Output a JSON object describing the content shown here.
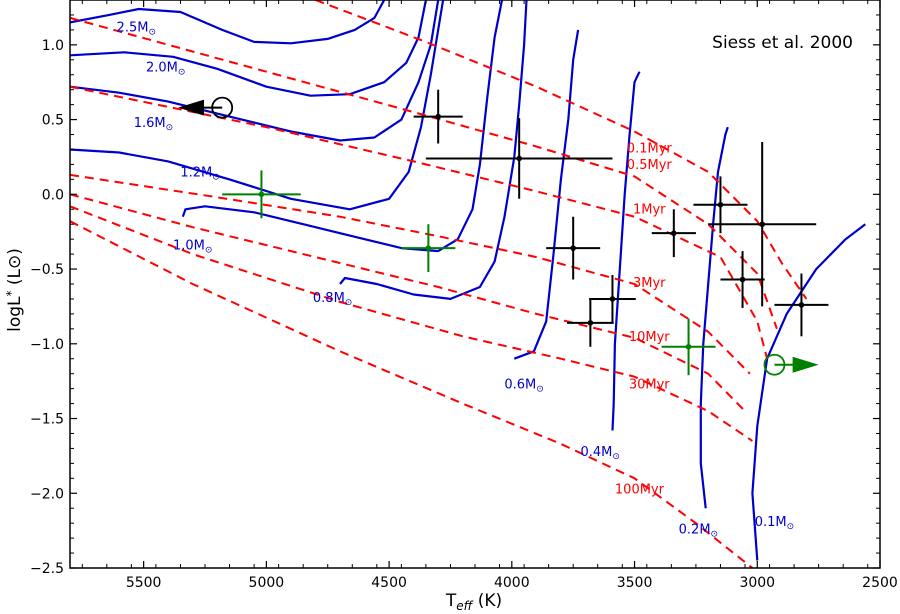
{
  "chart_data": {
    "type": "scatter",
    "title": "Siess et al. 2000",
    "xlabel": {
      "main": "T",
      "sub": "eff",
      "unit": " (K)"
    },
    "ylabel": {
      "main": "logL",
      "sub": "*",
      "unit": " (L⊙)"
    },
    "xlim": [
      5800,
      2500
    ],
    "ylim": [
      -2.5,
      1.3
    ],
    "x_ticks": [
      5500,
      5000,
      4500,
      4000,
      3500,
      3000,
      2500
    ],
    "y_ticks": [
      1.0,
      0.5,
      0.0,
      -0.5,
      -1.0,
      -1.5,
      -2.0,
      -2.5
    ],
    "tick_labels_x": [
      "5500",
      "5000",
      "4500",
      "4000",
      "3500",
      "3000",
      "2500"
    ],
    "tick_labels_y": [
      "1.0",
      "0.5",
      "0.0",
      "−0.5",
      "−1.0",
      "−1.5",
      "−2.0",
      "−2.5"
    ],
    "colors": {
      "track": "#0000cc",
      "isochrone": "#ff0000",
      "point": "#000000",
      "special": "#008000"
    },
    "tracks": [
      {
        "label": "2.5M⊙",
        "label_pos": [
          5530,
          1.09
        ],
        "points": [
          [
            5800,
            1.15
          ],
          [
            5640,
            1.2
          ],
          [
            5520,
            1.24
          ],
          [
            5350,
            1.22
          ],
          [
            5180,
            1.1
          ],
          [
            5050,
            1.02
          ],
          [
            4900,
            1.01
          ],
          [
            4750,
            1.04
          ],
          [
            4640,
            1.1
          ],
          [
            4560,
            1.18
          ],
          [
            4520,
            1.3
          ]
        ]
      },
      {
        "label": "2.0M⊙",
        "label_pos": [
          5410,
          0.82
        ],
        "points": [
          [
            5800,
            0.93
          ],
          [
            5580,
            0.95
          ],
          [
            5380,
            0.92
          ],
          [
            5200,
            0.84
          ],
          [
            5000,
            0.72
          ],
          [
            4820,
            0.66
          ],
          [
            4660,
            0.67
          ],
          [
            4520,
            0.75
          ],
          [
            4430,
            0.88
          ],
          [
            4380,
            1.05
          ],
          [
            4350,
            1.3
          ]
        ]
      },
      {
        "label": "1.6M⊙",
        "label_pos": [
          5460,
          0.45
        ],
        "points": [
          [
            5800,
            0.72
          ],
          [
            5600,
            0.68
          ],
          [
            5400,
            0.62
          ],
          [
            5150,
            0.52
          ],
          [
            4900,
            0.42
          ],
          [
            4700,
            0.36
          ],
          [
            4560,
            0.38
          ],
          [
            4450,
            0.5
          ],
          [
            4380,
            0.75
          ],
          [
            4330,
            1.0
          ],
          [
            4300,
            1.3
          ]
        ]
      },
      {
        "label": "1.2M⊙",
        "label_pos": [
          5270,
          0.12
        ],
        "points": [
          [
            5800,
            0.3
          ],
          [
            5600,
            0.28
          ],
          [
            5400,
            0.22
          ],
          [
            5150,
            0.1
          ],
          [
            4900,
            -0.03
          ],
          [
            4660,
            -0.1
          ],
          [
            4500,
            -0.03
          ],
          [
            4420,
            0.15
          ],
          [
            4370,
            0.45
          ],
          [
            4330,
            0.8
          ],
          [
            4280,
            1.3
          ]
        ]
      },
      {
        "label": "1.0M⊙",
        "label_pos": [
          5300,
          -0.37
        ],
        "points": [
          [
            5340,
            -0.15
          ],
          [
            5330,
            -0.1
          ],
          [
            5250,
            -0.08
          ],
          [
            5050,
            -0.12
          ],
          [
            4850,
            -0.2
          ],
          [
            4650,
            -0.28
          ],
          [
            4450,
            -0.36
          ],
          [
            4300,
            -0.38
          ],
          [
            4220,
            -0.3
          ],
          [
            4160,
            -0.1
          ],
          [
            4130,
            0.2
          ],
          [
            4100,
            0.65
          ],
          [
            4070,
            1.05
          ],
          [
            4040,
            1.3
          ]
        ]
      },
      {
        "label": "0.8M⊙",
        "label_pos": [
          4730,
          -0.72
        ],
        "points": [
          [
            4700,
            -0.6
          ],
          [
            4680,
            -0.56
          ],
          [
            4550,
            -0.6
          ],
          [
            4400,
            -0.67
          ],
          [
            4250,
            -0.7
          ],
          [
            4130,
            -0.62
          ],
          [
            4070,
            -0.45
          ],
          [
            4030,
            -0.15
          ],
          [
            3990,
            0.25
          ],
          [
            3970,
            0.6
          ],
          [
            3950,
            1.0
          ],
          [
            3940,
            1.3
          ]
        ]
      },
      {
        "label": "0.6M⊙",
        "label_pos": [
          3950,
          -1.3
        ],
        "points": [
          [
            3990,
            -1.1
          ],
          [
            3910,
            -1.05
          ],
          [
            3860,
            -0.85
          ],
          [
            3830,
            -0.4
          ],
          [
            3800,
            0.1
          ],
          [
            3770,
            0.5
          ],
          [
            3750,
            0.9
          ],
          [
            3730,
            1.1
          ]
        ]
      },
      {
        "label": "0.4M⊙",
        "label_pos": [
          3640,
          -1.75
        ],
        "points": [
          [
            3590,
            -1.58
          ],
          [
            3585,
            -1.4
          ],
          [
            3580,
            -1.0
          ],
          [
            3560,
            -0.5
          ],
          [
            3540,
            0.0
          ],
          [
            3520,
            0.4
          ],
          [
            3500,
            0.75
          ],
          [
            3480,
            0.82
          ]
        ]
      },
      {
        "label": "0.2M⊙",
        "label_pos": [
          3240,
          -2.27
        ],
        "points": [
          [
            3210,
            -2.1
          ],
          [
            3230,
            -1.8
          ],
          [
            3230,
            -1.4
          ],
          [
            3220,
            -1.0
          ],
          [
            3200,
            -0.6
          ],
          [
            3180,
            -0.2
          ],
          [
            3160,
            0.15
          ],
          [
            3130,
            0.4
          ],
          [
            3120,
            0.45
          ]
        ]
      },
      {
        "label": "0.1M⊙",
        "label_pos": [
          2930,
          -2.22
        ],
        "points": [
          [
            3000,
            -2.45
          ],
          [
            3020,
            -2.0
          ],
          [
            3000,
            -1.55
          ],
          [
            2960,
            -1.1
          ],
          [
            2880,
            -0.8
          ],
          [
            2760,
            -0.5
          ],
          [
            2640,
            -0.3
          ],
          [
            2560,
            -0.2
          ]
        ]
      }
    ],
    "isochrones": [
      {
        "label": "0.1Myr",
        "label_pos": [
          3440,
          0.28
        ],
        "points": [
          [
            4800,
            1.3
          ],
          [
            4350,
            1.02
          ],
          [
            3900,
            0.72
          ],
          [
            3500,
            0.42
          ],
          [
            3200,
            0.15
          ],
          [
            3000,
            -0.18
          ],
          [
            2900,
            -0.46
          ],
          [
            2800,
            -0.7
          ]
        ]
      },
      {
        "label": "0.5Myr",
        "label_pos": [
          3440,
          0.17
        ],
        "points": [
          [
            5800,
            1.18
          ],
          [
            5000,
            0.82
          ],
          [
            4400,
            0.55
          ],
          [
            3900,
            0.32
          ],
          [
            3500,
            0.12
          ],
          [
            3200,
            -0.2
          ],
          [
            3000,
            -0.53
          ],
          [
            2920,
            -0.9
          ]
        ]
      },
      {
        "label": "1Myr",
        "label_pos": [
          3440,
          -0.13
        ],
        "points": [
          [
            5800,
            0.72
          ],
          [
            5000,
            0.45
          ],
          [
            4400,
            0.22
          ],
          [
            3900,
            0.02
          ],
          [
            3500,
            -0.15
          ],
          [
            3150,
            -0.42
          ],
          [
            3000,
            -0.85
          ],
          [
            2960,
            -1.1
          ]
        ]
      },
      {
        "label": "3Myr",
        "label_pos": [
          3440,
          -0.62
        ],
        "points": [
          [
            5800,
            0.13
          ],
          [
            5200,
            -0.02
          ],
          [
            4700,
            -0.15
          ],
          [
            4300,
            -0.28
          ],
          [
            3900,
            -0.42
          ],
          [
            3500,
            -0.6
          ],
          [
            3200,
            -0.92
          ],
          [
            3030,
            -1.2
          ]
        ]
      },
      {
        "label": "10Myr",
        "label_pos": [
          3440,
          -0.98
        ],
        "points": [
          [
            5800,
            0.0
          ],
          [
            5300,
            -0.22
          ],
          [
            4800,
            -0.42
          ],
          [
            4300,
            -0.62
          ],
          [
            3900,
            -0.8
          ],
          [
            3500,
            -0.96
          ],
          [
            3200,
            -1.2
          ],
          [
            3050,
            -1.45
          ]
        ]
      },
      {
        "label": "30Myr",
        "label_pos": [
          3440,
          -1.3
        ],
        "points": [
          [
            5800,
            -0.08
          ],
          [
            5300,
            -0.4
          ],
          [
            4700,
            -0.72
          ],
          [
            4200,
            -0.95
          ],
          [
            3800,
            -1.1
          ],
          [
            3500,
            -1.22
          ],
          [
            3200,
            -1.45
          ],
          [
            3020,
            -1.65
          ]
        ]
      },
      {
        "label": "100Myr",
        "label_pos": [
          3480,
          -2.0
        ],
        "points": [
          [
            5800,
            -0.18
          ],
          [
            5300,
            -0.6
          ],
          [
            4700,
            -1.05
          ],
          [
            4200,
            -1.4
          ],
          [
            3800,
            -1.67
          ],
          [
            3500,
            -1.9
          ],
          [
            3250,
            -2.2
          ],
          [
            3020,
            -2.5
          ]
        ]
      }
    ],
    "points": [
      {
        "x": 4300,
        "y": 0.52,
        "xerr": 100,
        "yerr": 0.18,
        "color": "#000000"
      },
      {
        "x": 3970,
        "y": 0.24,
        "xerr": 380,
        "yerr": 0.27,
        "color": "#000000"
      },
      {
        "x": 3750,
        "y": -0.36,
        "xerr": 110,
        "yerr": 0.21,
        "color": "#000000"
      },
      {
        "x": 3590,
        "y": -0.7,
        "xerr": 95,
        "yerr": 0.16,
        "color": "#000000"
      },
      {
        "x": 3680,
        "y": -0.86,
        "xerr": 95,
        "yerr": 0.16,
        "color": "#000000"
      },
      {
        "x": 3340,
        "y": -0.26,
        "xerr": 90,
        "yerr": 0.16,
        "color": "#000000"
      },
      {
        "x": 3150,
        "y": -0.07,
        "xerr": 110,
        "yerr": 0.19,
        "color": "#000000"
      },
      {
        "x": 2980,
        "y": -0.2,
        "xerr": 220,
        "yerr": 0.55,
        "color": "#000000"
      },
      {
        "x": 3060,
        "y": -0.57,
        "xerr": 90,
        "yerr": 0.19,
        "color": "#000000"
      },
      {
        "x": 2820,
        "y": -0.74,
        "xerr": 110,
        "yerr": 0.21,
        "color": "#000000"
      },
      {
        "x": 5020,
        "y": 0.0,
        "xerr": 160,
        "yerr": 0.16,
        "color": "#008000"
      },
      {
        "x": 4340,
        "y": -0.36,
        "xerr": 110,
        "yerr": 0.16,
        "color": "#008000"
      },
      {
        "x": 3280,
        "y": -1.02,
        "xerr": 110,
        "yerr": 0.19,
        "color": "#008000"
      }
    ],
    "limits": [
      {
        "x": 5180,
        "y": 0.58,
        "direction": "left",
        "color": "#000000",
        "arrow_to": 5360
      },
      {
        "x": 2930,
        "y": -1.14,
        "direction": "right",
        "color": "#008000",
        "arrow_to": 2750
      }
    ]
  }
}
